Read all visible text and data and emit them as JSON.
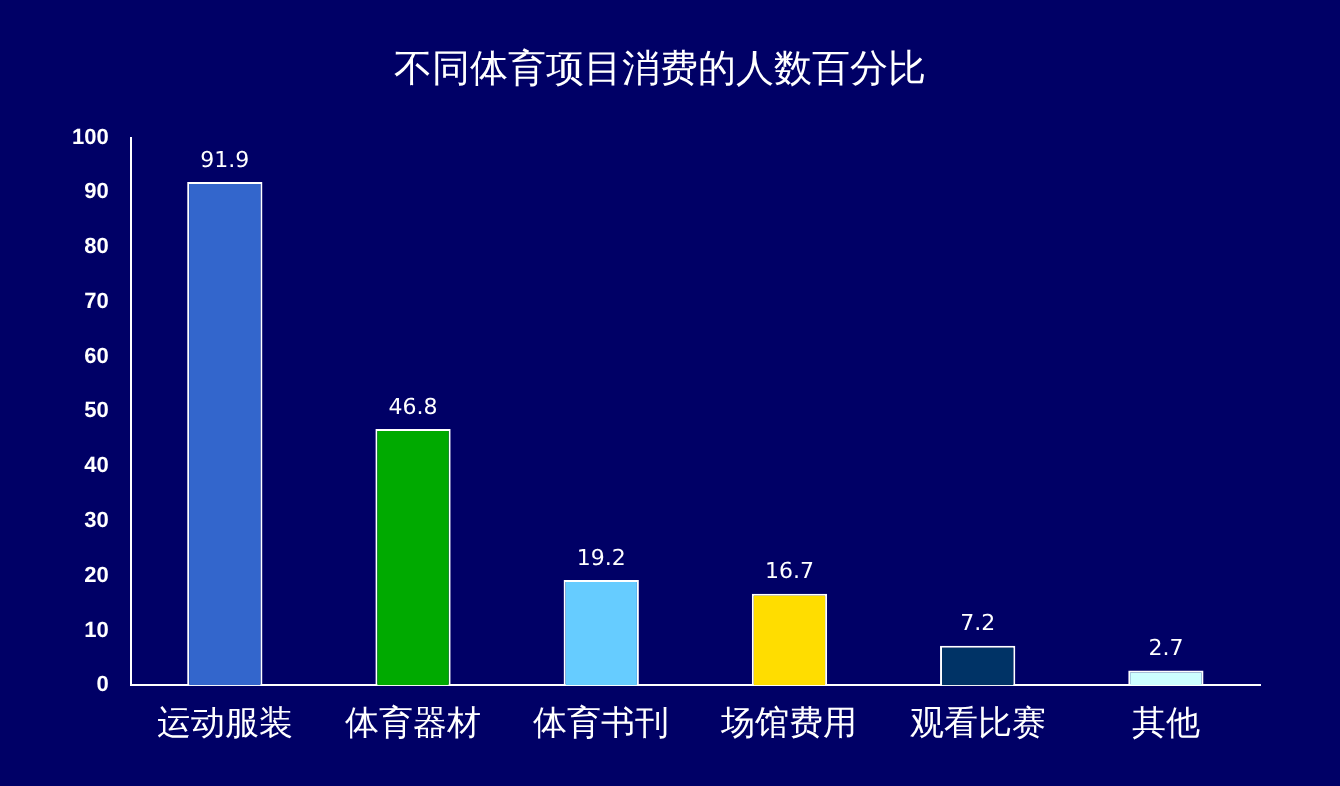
{
  "chart_data": {
    "type": "bar",
    "title": "不同体育项目消费的人数百分比",
    "categories": [
      "运动服装",
      "体育器材",
      "体育书刊",
      "场馆费用",
      "观看比赛",
      "其他"
    ],
    "values": [
      91.9,
      46.8,
      19.2,
      16.7,
      7.2,
      2.7
    ],
    "colors": [
      "#3366cc",
      "#00aa00",
      "#66ccff",
      "#ffdd00",
      "#003366",
      "#ccffff"
    ],
    "ylim": [
      0,
      100
    ],
    "yticks": [
      0,
      10,
      20,
      30,
      40,
      50,
      60,
      70,
      80,
      90,
      100
    ],
    "grid": false,
    "legend": false,
    "data_labels": true
  }
}
